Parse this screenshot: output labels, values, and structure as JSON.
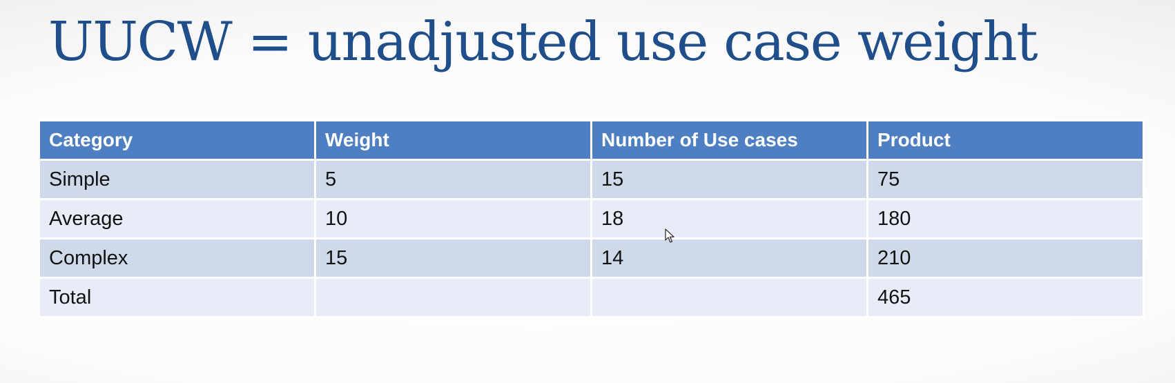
{
  "slide": {
    "title": "UUCW = unadjusted use case weight"
  },
  "table": {
    "headers": [
      "Category",
      "Weight",
      "Number of Use cases",
      "Product"
    ],
    "rows": [
      [
        "Simple",
        "5",
        "15",
        "75"
      ],
      [
        "Average",
        "10",
        "18",
        "180"
      ],
      [
        "Complex",
        "15",
        "14",
        "210"
      ],
      [
        "Total",
        "",
        "",
        "465"
      ]
    ]
  },
  "colors": {
    "title": "#1f4e8a",
    "header_bg": "#4e7fc2",
    "row_dark": "#cfd9ea",
    "row_light": "#e8ecf6"
  }
}
